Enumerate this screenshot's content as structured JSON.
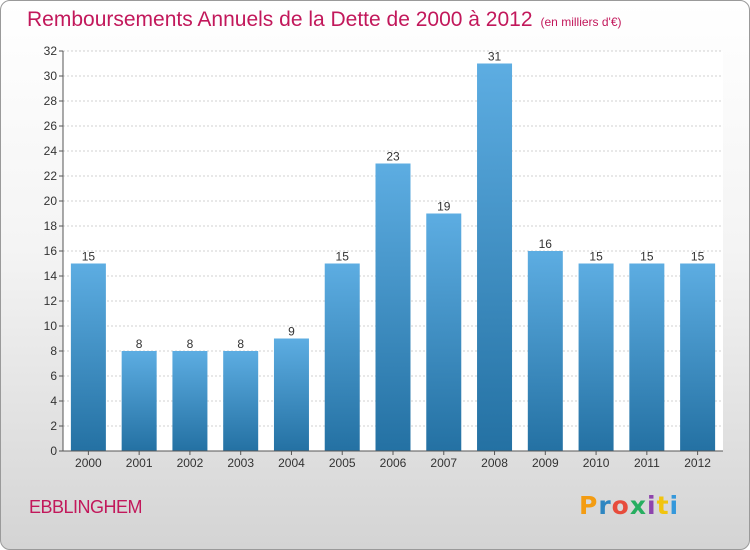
{
  "header": {
    "title": "Remboursements Annuels de la Dette de 2000 à 2012",
    "subtitle": "(en milliers d'€)"
  },
  "footer": {
    "commune": "EBBLINGHEM",
    "logo": {
      "text": "Proxiti",
      "colors": [
        "#f39c12",
        "#2e86c1",
        "#e74c3c",
        "#27ae60",
        "#8e44ad",
        "#f1c40f",
        "#3498db"
      ]
    }
  },
  "chart_data": {
    "type": "bar",
    "categories": [
      "2000",
      "2001",
      "2002",
      "2003",
      "2004",
      "2005",
      "2006",
      "2007",
      "2008",
      "2009",
      "2010",
      "2011",
      "2012"
    ],
    "values": [
      15,
      8,
      8,
      8,
      9,
      15,
      23,
      19,
      31,
      16,
      15,
      15,
      15
    ],
    "value_labels": [
      "15",
      "8",
      "8",
      "8",
      "9",
      "15",
      "23",
      "19",
      "31",
      "16",
      "15",
      "15",
      "15"
    ],
    "title": "Remboursements Annuels de la Dette de 2000 à 2012",
    "xlabel": "",
    "ylabel": "",
    "ylim": [
      0,
      32
    ],
    "yticks": [
      "0",
      "2",
      "4",
      "6",
      "8",
      "10",
      "12",
      "14",
      "16",
      "18",
      "20",
      "22",
      "24",
      "26",
      "28",
      "30",
      "32"
    ],
    "grid": true,
    "bar_color_top": "#5dade2",
    "bar_color_bottom": "#2471a3"
  }
}
